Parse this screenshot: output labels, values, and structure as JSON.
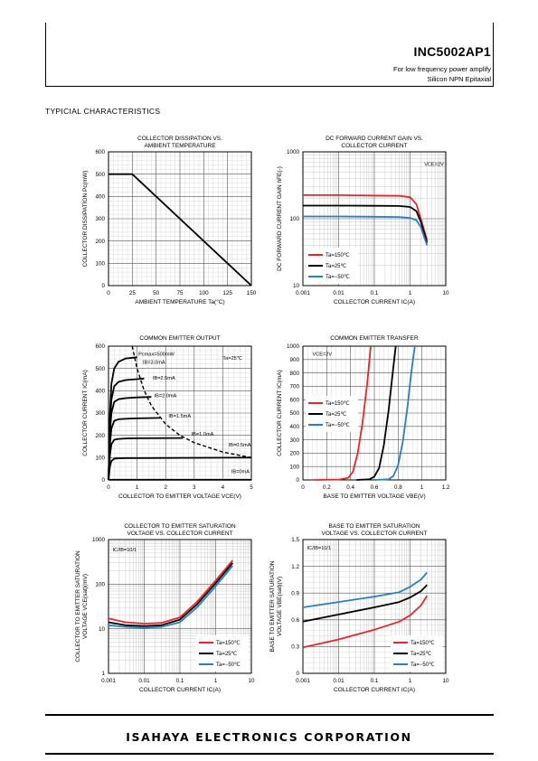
{
  "header": {
    "part_number": "INC5002AP1",
    "desc1": "For low frequency power amplify",
    "desc2": "Silicon NPN Epitaxial"
  },
  "section_title": "TYPICIAL  CHARACTERISTICS",
  "footer": {
    "company": "ISAHAYA ELECTRONICS CORPORATION"
  },
  "colors": {
    "red": "#e8262a",
    "black": "#000000",
    "blue": "#2a7fc1"
  },
  "chart_data": [
    {
      "id": "pd",
      "type": "line",
      "title": [
        "COLLECTOR DISSIPATION VS.",
        "AMBIENT TEMPERATURE"
      ],
      "xlabel": "AMBIENT TEMPERATURE  Ta(°C)",
      "ylabel": "COLLECTOR DISSIPATION  Pc(mW)",
      "xlim": [
        0,
        150
      ],
      "ylim": [
        0,
        600
      ],
      "xscale": "linear",
      "yscale": "linear",
      "xticks": [
        0,
        25,
        50,
        75,
        100,
        125,
        150
      ],
      "yticks": [
        0,
        100,
        200,
        300,
        400,
        500,
        600
      ],
      "grid": true,
      "series": [
        {
          "color": "#000000",
          "x": [
            0,
            25,
            150
          ],
          "y": [
            500,
            500,
            0
          ]
        }
      ]
    },
    {
      "id": "hfe",
      "type": "line",
      "title": [
        "DC FORWARD CURRENT GAIN VS.",
        "COLLECTOR CURRENT"
      ],
      "xlabel": "COLLECTOR CURRENT  IC(A)",
      "ylabel": "DC FORWARD CURRENT GAIN  hFE(-)",
      "xlim": [
        0.001,
        10
      ],
      "ylim": [
        10,
        1000
      ],
      "xscale": "log",
      "yscale": "log",
      "xticks": [
        0.001,
        0.01,
        0.1,
        1,
        10
      ],
      "xticklabels": [
        "0.001",
        "0.01",
        "0.1",
        "1",
        "10"
      ],
      "yticks": [
        10,
        100,
        1000
      ],
      "yticklabels": [
        "10",
        "100",
        "1000"
      ],
      "grid": true,
      "annotations": [
        {
          "text": "VCE=2V",
          "x": 2.5,
          "y": 620
        }
      ],
      "legend": {
        "position": "bottom-left"
      },
      "series": [
        {
          "name": "Ta=150℃",
          "color": "#e8262a",
          "x": [
            0.001,
            0.01,
            0.1,
            0.5,
            1,
            1.5,
            2,
            3
          ],
          "y": [
            225,
            225,
            222,
            220,
            210,
            165,
            100,
            48
          ]
        },
        {
          "name": "Ta=25℃",
          "color": "#000000",
          "x": [
            0.001,
            0.01,
            0.1,
            0.5,
            1,
            1.5,
            2,
            3
          ],
          "y": [
            157,
            157,
            156,
            155,
            150,
            130,
            90,
            44
          ]
        },
        {
          "name": "Ta=−50℃",
          "color": "#2a7fc1",
          "x": [
            0.001,
            0.01,
            0.1,
            0.5,
            1,
            1.5,
            2,
            3
          ],
          "y": [
            108,
            108,
            107,
            106,
            103,
            95,
            75,
            40
          ]
        }
      ]
    },
    {
      "id": "output",
      "type": "line",
      "title": [
        "COMMON EMITTER OUTPUT"
      ],
      "xlabel": "COLLECTOR TO EMITTER VOLTAGE VCE(V)",
      "ylabel": "COLLECTOR CURRENT  IC(mA)",
      "xlim": [
        0,
        5
      ],
      "ylim": [
        0,
        600
      ],
      "xscale": "linear",
      "yscale": "linear",
      "xticks": [
        0,
        1,
        2,
        3,
        4,
        5
      ],
      "yticks": [
        0,
        100,
        200,
        300,
        400,
        500,
        600
      ],
      "grid": true,
      "annotations": [
        {
          "text": "Ta=25℃",
          "x": 4.0,
          "y": 540
        },
        {
          "text": "Pcmax=500mW",
          "x": 1.05,
          "y": 558
        },
        {
          "text": "IB=3.0mA",
          "x": 1.2,
          "y": 520
        },
        {
          "text": "IB=2.5mA",
          "x": 1.55,
          "y": 450
        },
        {
          "text": "IB=2.0mA",
          "x": 1.6,
          "y": 370
        },
        {
          "text": "IB=1.5mA",
          "x": 2.1,
          "y": 280
        },
        {
          "text": "IB=1.0mA",
          "x": 2.9,
          "y": 198
        },
        {
          "text": "IB=0.5mA",
          "x": 4.2,
          "y": 150
        },
        {
          "text": "IB=0mA",
          "x": 4.3,
          "y": 30
        }
      ],
      "series": [
        {
          "color": "#000000",
          "x": [
            0,
            0.05,
            0.1,
            0.2,
            0.35,
            0.6,
            1.0
          ],
          "y": [
            0,
            300,
            430,
            500,
            530,
            545,
            550
          ]
        },
        {
          "color": "#000000",
          "x": [
            0,
            0.05,
            0.1,
            0.2,
            0.35,
            0.6,
            1.0,
            1.25
          ],
          "y": [
            0,
            250,
            360,
            420,
            440,
            448,
            452,
            455
          ]
        },
        {
          "color": "#000000",
          "x": [
            0,
            0.05,
            0.1,
            0.2,
            0.35,
            0.6,
            1.0,
            1.5
          ],
          "y": [
            0,
            210,
            300,
            350,
            362,
            367,
            370,
            372
          ]
        },
        {
          "color": "#000000",
          "x": [
            0,
            0.05,
            0.1,
            0.2,
            0.35,
            0.6,
            1.0,
            1.8
          ],
          "y": [
            0,
            160,
            230,
            265,
            272,
            274,
            276,
            278
          ]
        },
        {
          "color": "#000000",
          "x": [
            0,
            0.05,
            0.1,
            0.2,
            0.35,
            0.6,
            1.0,
            2.6
          ],
          "y": [
            0,
            110,
            160,
            180,
            184,
            186,
            187,
            188
          ]
        },
        {
          "color": "#000000",
          "x": [
            0,
            0.05,
            0.1,
            0.2,
            0.35,
            0.6,
            1.0,
            5.0
          ],
          "y": [
            0,
            60,
            85,
            95,
            97,
            98,
            98,
            100
          ]
        },
        {
          "color": "#000000",
          "x": [
            0,
            5
          ],
          "y": [
            1,
            1
          ]
        },
        {
          "color": "#000000",
          "dash": true,
          "x": [
            0.83,
            1.0,
            1.25,
            1.5,
            2.0,
            2.5,
            3.0,
            4.0,
            5.0
          ],
          "y": [
            600,
            500,
            400,
            333,
            250,
            200,
            167,
            125,
            100
          ]
        }
      ]
    },
    {
      "id": "transfer",
      "type": "line",
      "title": [
        "COMMON EMITTER TRANSFER"
      ],
      "xlabel": "BASE TO EMITTER VOLTAGE  VBE(V)",
      "ylabel": "COLLECTOR CURRENT  IC(mA)",
      "xlim": [
        0,
        1.2
      ],
      "ylim": [
        0,
        1000
      ],
      "xscale": "linear",
      "yscale": "linear",
      "xticks": [
        0,
        0.2,
        0.4,
        0.6,
        0.8,
        1,
        1.2
      ],
      "xticklabels": [
        "0",
        "0.2",
        "0.4",
        "0.6",
        "0.8",
        "1",
        "1.2"
      ],
      "yticks": [
        0,
        100,
        200,
        300,
        400,
        500,
        600,
        700,
        800,
        900,
        1000
      ],
      "grid": true,
      "annotations": [
        {
          "text": "VCE=2V",
          "x": 0.08,
          "y": 930
        }
      ],
      "legend": {
        "position": "left"
      },
      "series": [
        {
          "name": "Ta=150℃",
          "color": "#e8262a",
          "x": [
            0.1,
            0.3,
            0.38,
            0.42,
            0.46,
            0.5,
            0.54,
            0.57
          ],
          "y": [
            0,
            3,
            15,
            60,
            200,
            420,
            720,
            1000
          ]
        },
        {
          "name": "Ta=25℃",
          "color": "#000000",
          "x": [
            0.45,
            0.56,
            0.6,
            0.64,
            0.68,
            0.72,
            0.75,
            0.78
          ],
          "y": [
            0,
            5,
            25,
            90,
            260,
            520,
            770,
            1000
          ]
        },
        {
          "name": "Ta=−50℃",
          "color": "#2a7fc1",
          "x": [
            0.6,
            0.72,
            0.76,
            0.8,
            0.84,
            0.88,
            0.91,
            0.94
          ],
          "y": [
            0,
            5,
            30,
            110,
            290,
            560,
            800,
            1000
          ]
        }
      ]
    },
    {
      "id": "vcesat",
      "type": "line",
      "title": [
        "COLLECTOR TO EMITTER SATURATION",
        "VOLTAGE VS. COLLECTOR CURRENT"
      ],
      "xlabel": "COLLECTOR CURRENT  IC(A)",
      "ylabel": [
        "COLLECTOR TO EMITTER SATURATION",
        "VOLTAGE  VCE(sat)(mV)"
      ],
      "xlim": [
        0.001,
        10
      ],
      "ylim": [
        1,
        1000
      ],
      "xscale": "log",
      "yscale": "log",
      "xticks": [
        0.001,
        0.01,
        0.1,
        1,
        10
      ],
      "xticklabels": [
        "0.001",
        "0.01",
        "0.1",
        "1",
        "10"
      ],
      "yticks": [
        1,
        10,
        100,
        1000
      ],
      "yticklabels": [
        "1",
        "10",
        "100",
        "1000"
      ],
      "grid": true,
      "annotations": [
        {
          "text": "IC/IB=10/1",
          "x": 0.0013,
          "y": 550
        }
      ],
      "legend": {
        "position": "bottom-right"
      },
      "series": [
        {
          "name": "Ta=150℃",
          "color": "#e8262a",
          "x": [
            0.001,
            0.003,
            0.01,
            0.03,
            0.1,
            0.3,
            1,
            3
          ],
          "y": [
            17,
            14,
            13,
            13.5,
            18,
            40,
            120,
            340
          ]
        },
        {
          "name": "Ta=25℃",
          "color": "#000000",
          "x": [
            0.001,
            0.003,
            0.01,
            0.03,
            0.1,
            0.3,
            1,
            3
          ],
          "y": [
            14,
            12,
            11.5,
            12,
            16,
            35,
            105,
            300
          ]
        },
        {
          "name": "Ta=−50℃",
          "color": "#2a7fc1",
          "x": [
            0.001,
            0.003,
            0.01,
            0.03,
            0.1,
            0.3,
            1,
            3
          ],
          "y": [
            12,
            11,
            10.5,
            11,
            14,
            30,
            90,
            260
          ]
        }
      ]
    },
    {
      "id": "vbesat",
      "type": "line",
      "title": [
        "BASE TO EMITTER SATURATION",
        "VOLTAGE VS. COLLECTOR CURRENT"
      ],
      "xlabel": "COLLECTOR CURRENT  IC(A)",
      "ylabel": [
        "BASE TO EMITTER SATURATION",
        "VOLTAGE  VBE(sat)(V)"
      ],
      "xlim": [
        0.001,
        10
      ],
      "ylim": [
        0,
        1.5
      ],
      "xscale": "log",
      "yscale": "linear",
      "xticks": [
        0.001,
        0.01,
        0.1,
        1,
        10
      ],
      "xticklabels": [
        "0.001",
        "0.01",
        "0.1",
        "1",
        "10"
      ],
      "yticks": [
        0,
        0.3,
        0.6,
        0.9,
        1.2,
        1.5
      ],
      "yticklabels": [
        "0",
        "0.3",
        "0.6",
        "0.9",
        "1.2",
        "1.5"
      ],
      "grid": true,
      "annotations": [
        {
          "text": "IC/IB=10/1",
          "x": 0.0013,
          "y": 1.39
        }
      ],
      "legend": {
        "position": "bottom-right"
      },
      "series": [
        {
          "name": "Ta=150℃",
          "color": "#e8262a",
          "x": [
            0.001,
            0.01,
            0.1,
            0.5,
            1,
            2,
            3
          ],
          "y": [
            0.29,
            0.38,
            0.49,
            0.58,
            0.65,
            0.76,
            0.87
          ]
        },
        {
          "name": "Ta=25℃",
          "color": "#000000",
          "x": [
            0.001,
            0.01,
            0.1,
            0.5,
            1,
            2,
            3
          ],
          "y": [
            0.58,
            0.66,
            0.74,
            0.8,
            0.85,
            0.92,
            0.99
          ]
        },
        {
          "name": "Ta=−50℃",
          "color": "#2a7fc1",
          "x": [
            0.001,
            0.01,
            0.1,
            0.5,
            1,
            2,
            3
          ],
          "y": [
            0.74,
            0.8,
            0.86,
            0.91,
            0.97,
            1.05,
            1.13
          ]
        }
      ]
    }
  ]
}
